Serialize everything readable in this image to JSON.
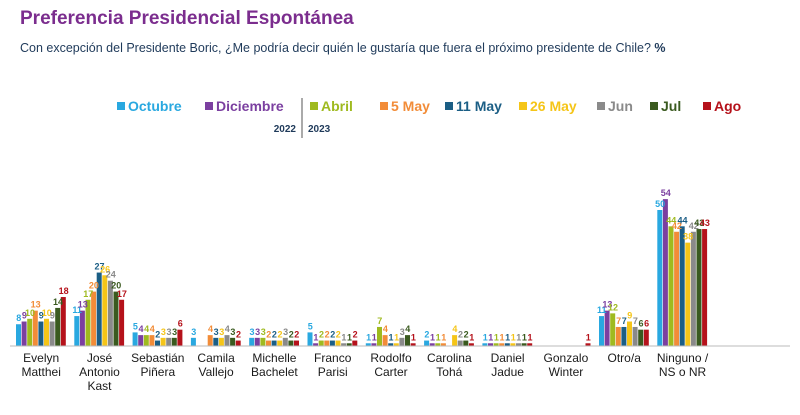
{
  "title": "Preferencia Presidencial Espontánea",
  "subtitle": "Con excepción del Presidente Boric, ¿Me podría decir quién le gustaría que fuera el próximo presidente de Chile?",
  "unit": "%",
  "year_labels": [
    "2022",
    "2023"
  ],
  "chart_data": {
    "type": "bar",
    "title": "Preferencia Presidencial Espontánea",
    "ylabel": "",
    "xlabel": "",
    "legend_position": "top",
    "grid": false,
    "ylim": [
      0,
      60
    ],
    "categories": [
      "Evelyn\nMatthei",
      "José\nAntonio\nKast",
      "Sebastián\nPiñera",
      "Camila\nVallejo",
      "Michelle\nBachelet",
      "Franco\nParisi",
      "Rodolfo\nCarter",
      "Carolina\nTohá",
      "Daniel\nJadue",
      "Gonzalo\nWinter",
      "Otro/a",
      "Ninguno /\nNS o NR"
    ],
    "series": [
      {
        "name": "Octubre",
        "color": "#29a8e0",
        "values": [
          8,
          11,
          5,
          3,
          3,
          5,
          1,
          2,
          1,
          0,
          11,
          50
        ]
      },
      {
        "name": "Diciembre",
        "color": "#7b3fa0",
        "values": [
          9,
          13,
          4,
          0,
          3,
          1,
          1,
          1,
          1,
          0,
          13,
          54
        ]
      },
      {
        "name": "Abril",
        "color": "#9fba1f",
        "values": [
          10,
          17,
          4,
          0,
          3,
          2,
          7,
          1,
          1,
          0,
          12,
          44
        ]
      },
      {
        "name": "5 May",
        "color": "#f28c38",
        "values": [
          13,
          20,
          4,
          4,
          2,
          2,
          4,
          1,
          1,
          0,
          7,
          42
        ]
      },
      {
        "name": "11 May",
        "color": "#1b5e85",
        "values": [
          9,
          27,
          2,
          3,
          2,
          2,
          1,
          0,
          1,
          0,
          7,
          44
        ]
      },
      {
        "name": "26 May",
        "color": "#f5c518",
        "values": [
          10,
          26,
          3,
          3,
          2,
          2,
          1,
          4,
          1,
          0,
          9,
          38
        ]
      },
      {
        "name": "Jun",
        "color": "#8a8a8a",
        "values": [
          9,
          24,
          3,
          4,
          3,
          1,
          3,
          2,
          1,
          0,
          7,
          42
        ]
      },
      {
        "name": "Jul",
        "color": "#3a5a1f",
        "values": [
          14,
          20,
          3,
          3,
          2,
          1,
          4,
          2,
          1,
          0,
          6,
          43
        ]
      },
      {
        "name": "Ago",
        "color": "#b5121b",
        "values": [
          18,
          17,
          6,
          2,
          2,
          2,
          1,
          1,
          1,
          1,
          6,
          43
        ]
      }
    ]
  }
}
